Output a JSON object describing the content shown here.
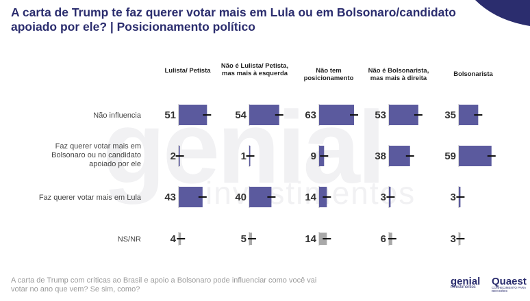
{
  "title": "A carta de Trump te faz querer votar mais em Lula ou em Bolsonaro/candidato apoiado por ele? | Posicionamento político",
  "footer": "A carta de Trump com críticas ao Brasil e apoio a Bolsonaro pode influenciar como você vai votar no ano que vem? Se sim, como?",
  "watermark": {
    "main": "genial",
    "sub": "investimentos"
  },
  "logos": {
    "genial": "genial",
    "genial_sub": "investimentos",
    "quaest": "Quaest",
    "quaest_sub": "CONHECIMENTO PARA DECISÕES"
  },
  "colors": {
    "bar": "#5b5a9e",
    "bar_gray": "#a9a9a9",
    "title": "#2b2d6e",
    "error": "#111111"
  },
  "chart_data": {
    "type": "bar",
    "columns": [
      "Lulista/ Petista",
      "Não é Lulista/ Petista, mas mais à esquerda",
      "Não tem posicionamento",
      "Não é Bolsonarista, mas mais à direita",
      "Bolsonarista"
    ],
    "rows": [
      "Não influencia",
      "Faz querer votar mais em Bolsonaro ou no candidato apoiado por ele",
      "Faz querer votar mais em Lula",
      "NS/NR"
    ],
    "values": [
      [
        51,
        54,
        63,
        53,
        35
      ],
      [
        2,
        1,
        9,
        38,
        59
      ],
      [
        43,
        40,
        14,
        3,
        3
      ],
      [
        4,
        5,
        14,
        6,
        3
      ]
    ],
    "unit": "%"
  }
}
